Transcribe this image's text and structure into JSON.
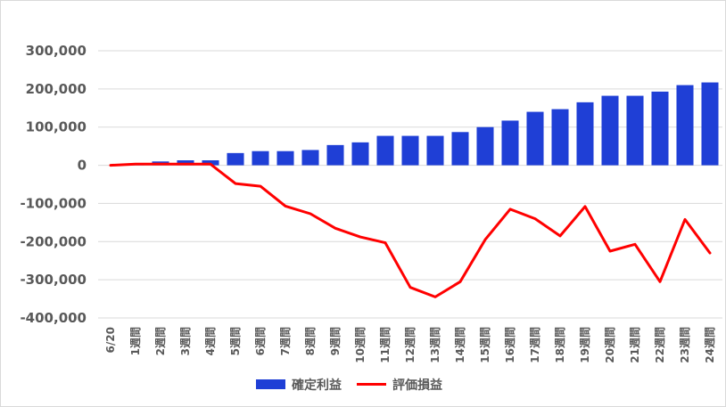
{
  "chart_data": {
    "type": "bar",
    "title": "",
    "xlabel": "",
    "ylabel": "",
    "ylim": [
      -400000,
      300000
    ],
    "yticks": [
      300000,
      200000,
      100000,
      0,
      -100000,
      -200000,
      -300000,
      -400000
    ],
    "ytick_labels": [
      "300,000",
      "200,000",
      "100,000",
      "0",
      "-100,000",
      "-200,000",
      "-300,000",
      "-400,000"
    ],
    "categories": [
      "6/20",
      "1週間",
      "2週間",
      "3週間",
      "4週間",
      "5週間",
      "6週間",
      "7週間",
      "8週間",
      "9週間",
      "10週間",
      "11週間",
      "12週間",
      "13週間",
      "14週間",
      "15週間",
      "16週間",
      "17週間",
      "18週間",
      "19週間",
      "20週間",
      "21週間",
      "22週間",
      "23週間",
      "24週間"
    ],
    "grid": true,
    "legend_position": "bottom",
    "series": [
      {
        "name": "確定利益",
        "type": "bar",
        "color": "#1f3fd6",
        "values": [
          0,
          2000,
          10000,
          13000,
          13000,
          32000,
          37000,
          37000,
          40000,
          53000,
          60000,
          77000,
          77000,
          77000,
          87000,
          100000,
          117000,
          140000,
          147000,
          165000,
          182000,
          182000,
          193000,
          210000,
          217000
        ]
      },
      {
        "name": "評価損益",
        "type": "line",
        "color": "#ff0000",
        "values": [
          0,
          3000,
          3000,
          3000,
          3000,
          -48000,
          -55000,
          -107000,
          -127000,
          -165000,
          -188000,
          -203000,
          -320000,
          -345000,
          -305000,
          -195000,
          -115000,
          -140000,
          -185000,
          -108000,
          -225000,
          -207000,
          -305000,
          -142000,
          -230000
        ]
      }
    ]
  }
}
